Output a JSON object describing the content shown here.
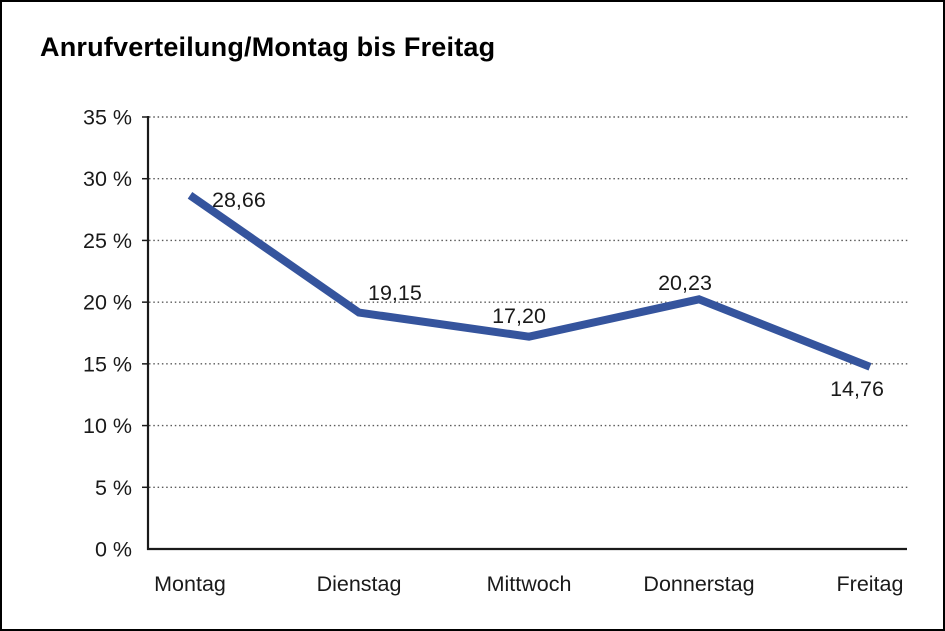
{
  "page": {
    "title": "Anrufverteilung/Montag bis Freitag"
  },
  "chart_data": {
    "type": "line",
    "title": "Anrufverteilung/Montag bis Freitag",
    "categories": [
      "Montag",
      "Dienstag",
      "Mittwoch",
      "Donnerstag",
      "Freitag"
    ],
    "series": [
      {
        "name": "Anrufverteilung",
        "values": [
          28.66,
          19.15,
          17.2,
          20.23,
          14.76
        ]
      }
    ],
    "point_labels": [
      "28,66",
      "19,15",
      "17,20",
      "20,23",
      "14,76"
    ],
    "y_tick_labels": [
      "0 %",
      "5 %",
      "10 %",
      "15 %",
      "20 %",
      "25 %",
      "30 %",
      "35 %"
    ],
    "ylabel": "",
    "xlabel": "",
    "ylim": [
      0,
      35
    ],
    "y_step": 5,
    "grid": "horizontal-dotted",
    "legend": "none",
    "colors": {
      "line": "#35549D",
      "axis": "#1a1a1a",
      "gridline": "#5a5a5a",
      "text": "#1a1a1a",
      "background": "#ffffff"
    }
  }
}
